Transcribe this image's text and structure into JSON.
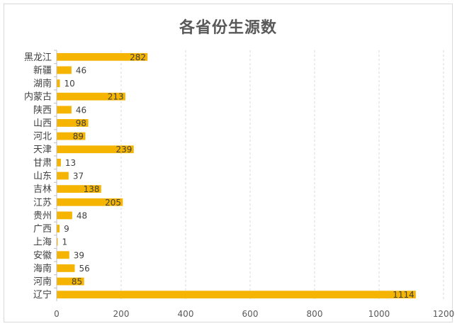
{
  "chart_data": {
    "type": "bar",
    "orientation": "horizontal",
    "title": "各省份生源数",
    "categories": [
      "黑龙江",
      "新疆",
      "湖南",
      "内蒙古",
      "陕西",
      "山西",
      "河北",
      "天津",
      "甘肃",
      "山东",
      "吉林",
      "江苏",
      "贵州",
      "广西",
      "上海",
      "安徽",
      "海南",
      "河南",
      "辽宁"
    ],
    "values": [
      282,
      46,
      10,
      213,
      46,
      98,
      89,
      239,
      13,
      37,
      138,
      205,
      48,
      9,
      1,
      39,
      56,
      85,
      1114
    ],
    "xlim": [
      0,
      1200
    ],
    "xticks": [
      0,
      200,
      400,
      600,
      800,
      1000,
      1200
    ],
    "grid": true,
    "data_labels": true,
    "bar_color": "#F5B400"
  }
}
